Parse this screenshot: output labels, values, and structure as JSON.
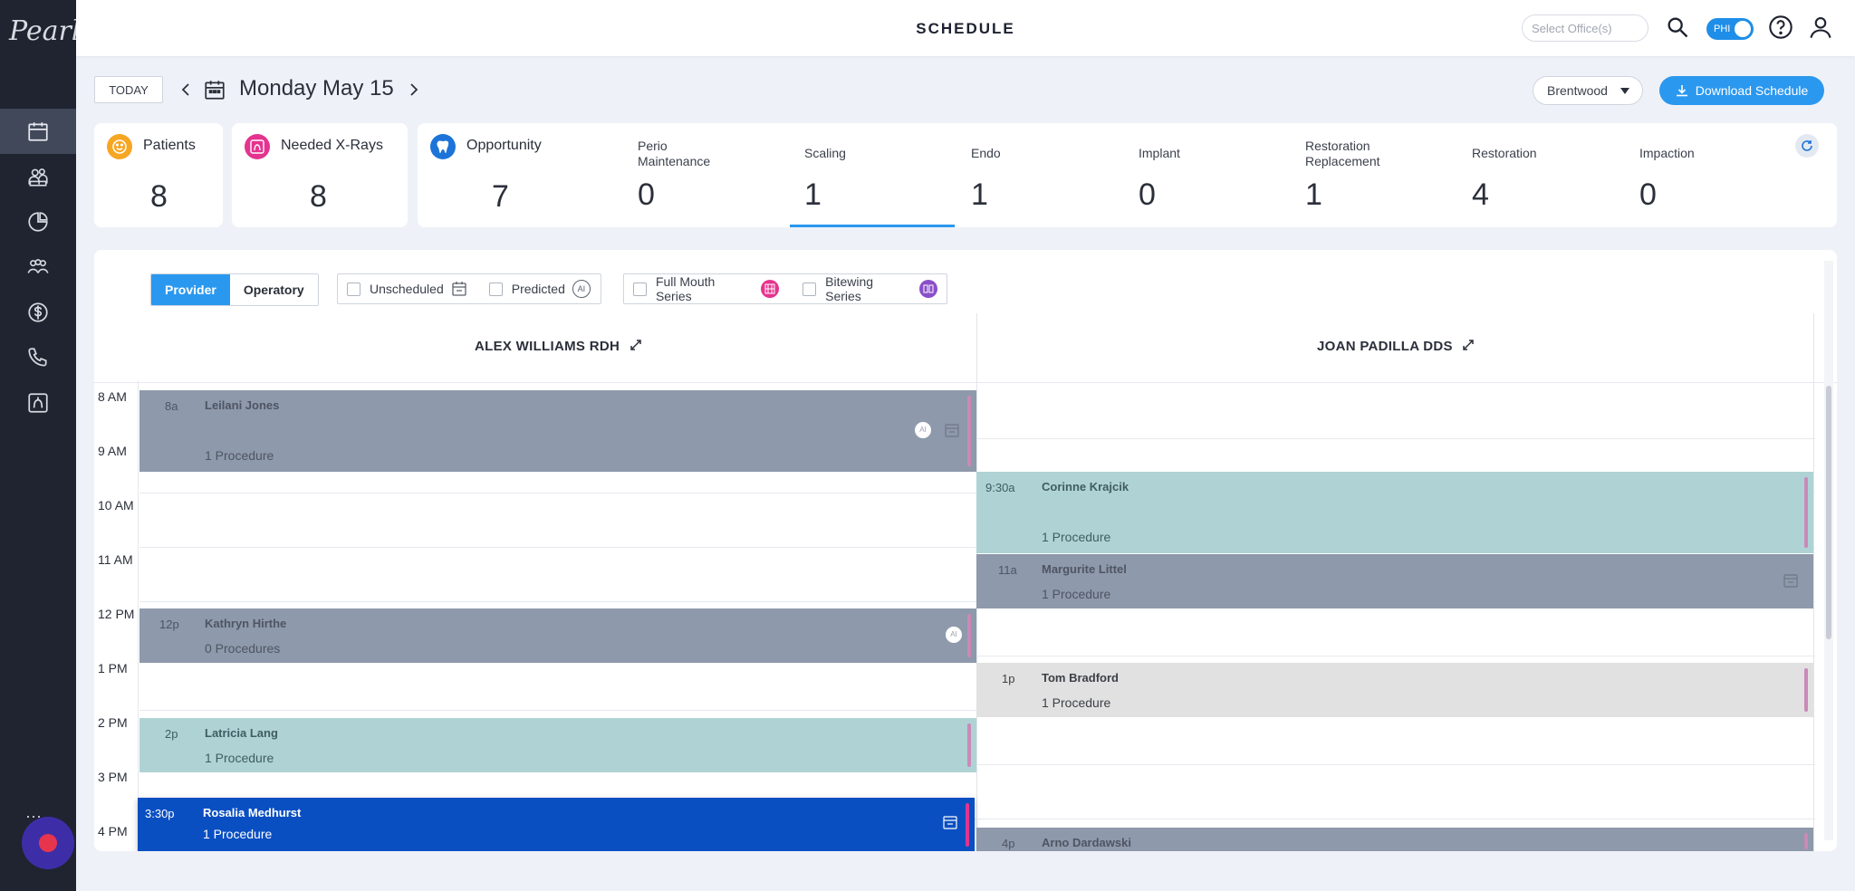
{
  "sidebar": {
    "logo": "Pearl",
    "nav": [
      {
        "icon": "calendar-icon",
        "active": true
      },
      {
        "icon": "patients-icon",
        "active": false
      },
      {
        "icon": "analytics-icon",
        "active": false
      },
      {
        "icon": "team-icon",
        "active": false
      },
      {
        "icon": "billing-icon",
        "active": false
      },
      {
        "icon": "phone-icon",
        "active": false
      },
      {
        "icon": "xray-icon",
        "active": false
      }
    ]
  },
  "header": {
    "title": "SCHEDULE",
    "office_placeholder": "Select Office(s)",
    "phi_label": "PHI"
  },
  "datebar": {
    "today_label": "TODAY",
    "date": "Monday May 15",
    "location": "Brentwood",
    "download_label": "Download Schedule"
  },
  "stats": {
    "patients": {
      "label": "Patients",
      "value": "8",
      "color": "#f6a623"
    },
    "xrays": {
      "label": "Needed X-Rays",
      "value": "8",
      "color": "#e5338f"
    },
    "opportunity": {
      "label": "Opportunity",
      "value": "7",
      "color": "#1d74d8",
      "items": [
        {
          "label": "Perio Maintenance",
          "value": "0"
        },
        {
          "label": "Scaling",
          "value": "1"
        },
        {
          "label": "Endo",
          "value": "1"
        },
        {
          "label": "Implant",
          "value": "0"
        },
        {
          "label": "Restoration Replacement",
          "value": "1"
        },
        {
          "label": "Restoration",
          "value": "4"
        },
        {
          "label": "Impaction",
          "value": "0"
        }
      ]
    }
  },
  "filters": {
    "view_provider": "Provider",
    "view_operatory": "Operatory",
    "unscheduled": "Unscheduled",
    "predicted": "Predicted",
    "full_mouth": "Full Mouth Series",
    "bitewing": "Bitewing Series"
  },
  "columns": [
    {
      "name": "ALEX WILLIAMS RDH",
      "appointments": [
        {
          "time": "8a",
          "name": "Leilani Jones",
          "procedures": "1 Procedure"
        },
        {
          "time": "12p",
          "name": "Kathryn Hirthe",
          "procedures": "0 Procedures"
        },
        {
          "time": "2p",
          "name": "Latricia Lang",
          "procedures": "1 Procedure"
        },
        {
          "time": "3:30p",
          "name": "Rosalia Medhurst",
          "procedures": "1 Procedure"
        }
      ]
    },
    {
      "name": "JOAN PADILLA DDS",
      "appointments": [
        {
          "time": "9:30a",
          "name": "Corinne Krajcik",
          "procedures": "1 Procedure"
        },
        {
          "time": "11a",
          "name": "Margurite Littel",
          "procedures": "1 Procedure"
        },
        {
          "time": "1p",
          "name": "Tom Bradford",
          "procedures": "1 Procedure"
        },
        {
          "time": "4p",
          "name": "Arno Dardawski",
          "procedures": ""
        }
      ]
    }
  ],
  "hours": [
    "8 AM",
    "9 AM",
    "10 AM",
    "11 AM",
    "12 PM",
    "1 PM",
    "2 PM",
    "3 PM",
    "4 PM"
  ],
  "ai_badge": "AI"
}
